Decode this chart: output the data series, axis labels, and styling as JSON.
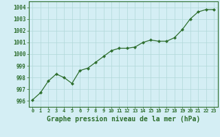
{
  "x": [
    0,
    1,
    2,
    3,
    4,
    5,
    6,
    7,
    8,
    9,
    10,
    11,
    12,
    13,
    14,
    15,
    16,
    17,
    18,
    19,
    20,
    21,
    22,
    23
  ],
  "y": [
    996.1,
    996.7,
    997.7,
    998.3,
    998.0,
    997.5,
    998.6,
    998.8,
    999.3,
    999.8,
    1000.3,
    1000.5,
    1000.5,
    1000.6,
    1001.0,
    1001.2,
    1001.1,
    1001.1,
    1001.4,
    1002.1,
    1003.0,
    1003.6,
    1003.8,
    1003.8
  ],
  "line_color": "#2d6e2d",
  "marker_color": "#2d6e2d",
  "bg_color": "#d4eef4",
  "grid_color": "#b0d8d8",
  "title": "Graphe pression niveau de la mer (hPa)",
  "xlim": [
    -0.5,
    23.5
  ],
  "ylim": [
    995.5,
    1004.5
  ],
  "yticks": [
    996,
    997,
    998,
    999,
    1000,
    1001,
    1002,
    1003,
    1004
  ],
  "xticks": [
    0,
    1,
    2,
    3,
    4,
    5,
    6,
    7,
    8,
    9,
    10,
    11,
    12,
    13,
    14,
    15,
    16,
    17,
    18,
    19,
    20,
    21,
    22,
    23
  ],
  "xlabel_fontsize": 7.0,
  "ytick_fontsize": 5.5,
  "xtick_fontsize": 5.0
}
